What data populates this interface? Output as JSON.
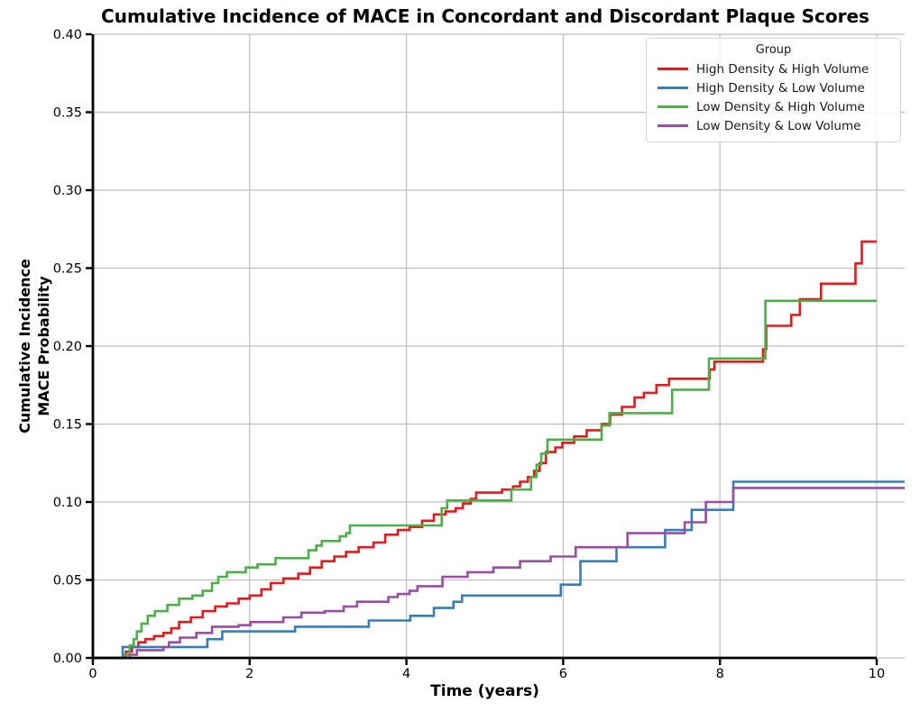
{
  "title": "Cumulative Incidence of MACE in Concordant and Discordant Plaque Scores",
  "x_axis": {
    "label": "Time (years)",
    "tick_values": [
      0,
      2,
      4,
      6,
      8,
      10
    ],
    "tick_labels": [
      "0",
      "2",
      "4",
      "6",
      "8",
      "10"
    ],
    "range": [
      0,
      10.36
    ]
  },
  "y_axis": {
    "label_line1": "Cumulative Incidence",
    "label_line2": "MACE Probability",
    "tick_values": [
      0.0,
      0.05,
      0.1,
      0.15,
      0.2,
      0.25,
      0.3,
      0.35,
      0.4
    ],
    "tick_labels": [
      "0.00",
      "0.05",
      "0.10",
      "0.15",
      "0.20",
      "0.25",
      "0.30",
      "0.35",
      "0.40"
    ],
    "range": [
      0,
      0.4
    ]
  },
  "legend": {
    "title": "Group"
  },
  "colors": {
    "grid": "#bdbdbd",
    "spine": "#000000",
    "red": "#e41a1c",
    "blue": "#377eb8",
    "green": "#4daf4a",
    "purple": "#984ea3"
  },
  "chart_data": {
    "type": "line",
    "subtype": "step-after",
    "title": "Cumulative Incidence of MACE in Concordant and Discordant Plaque Scores",
    "xlabel": "Time (years)",
    "ylabel": "Cumulative Incidence MACE Probability",
    "xlim": [
      0,
      10.36
    ],
    "ylim": [
      0,
      0.4
    ],
    "grid": true,
    "legend_position": "upper right",
    "legend_title": "Group",
    "series": [
      {
        "name": "High Density & High Volume",
        "color": "#e41a1c",
        "points": [
          [
            0,
            0
          ],
          [
            0.42,
            0.004
          ],
          [
            0.5,
            0.007
          ],
          [
            0.58,
            0.01
          ],
          [
            0.67,
            0.012
          ],
          [
            0.78,
            0.014
          ],
          [
            0.9,
            0.016
          ],
          [
            1.0,
            0.019
          ],
          [
            1.1,
            0.023
          ],
          [
            1.25,
            0.026
          ],
          [
            1.4,
            0.03
          ],
          [
            1.56,
            0.033
          ],
          [
            1.71,
            0.035
          ],
          [
            1.86,
            0.038
          ],
          [
            2.0,
            0.04
          ],
          [
            2.15,
            0.044
          ],
          [
            2.27,
            0.048
          ],
          [
            2.43,
            0.051
          ],
          [
            2.62,
            0.054
          ],
          [
            2.77,
            0.058
          ],
          [
            2.92,
            0.062
          ],
          [
            3.08,
            0.065
          ],
          [
            3.23,
            0.068
          ],
          [
            3.39,
            0.071
          ],
          [
            3.58,
            0.074
          ],
          [
            3.73,
            0.079
          ],
          [
            3.89,
            0.082
          ],
          [
            4.04,
            0.084
          ],
          [
            4.2,
            0.088
          ],
          [
            4.35,
            0.092
          ],
          [
            4.5,
            0.094
          ],
          [
            4.63,
            0.096
          ],
          [
            4.72,
            0.099
          ],
          [
            4.82,
            0.102
          ],
          [
            4.89,
            0.106
          ],
          [
            5.22,
            0.108
          ],
          [
            5.36,
            0.11
          ],
          [
            5.45,
            0.113
          ],
          [
            5.55,
            0.116
          ],
          [
            5.63,
            0.12
          ],
          [
            5.7,
            0.125
          ],
          [
            5.78,
            0.132
          ],
          [
            5.9,
            0.135
          ],
          [
            5.99,
            0.138
          ],
          [
            6.14,
            0.142
          ],
          [
            6.3,
            0.146
          ],
          [
            6.49,
            0.15
          ],
          [
            6.6,
            0.156
          ],
          [
            6.75,
            0.161
          ],
          [
            6.91,
            0.167
          ],
          [
            7.03,
            0.17
          ],
          [
            7.19,
            0.175
          ],
          [
            7.35,
            0.179
          ],
          [
            7.87,
            0.185
          ],
          [
            7.93,
            0.19
          ],
          [
            8.55,
            0.198
          ],
          [
            8.59,
            0.213
          ],
          [
            8.91,
            0.22
          ],
          [
            9.02,
            0.23
          ],
          [
            9.29,
            0.24
          ],
          [
            9.73,
            0.253
          ],
          [
            9.81,
            0.267
          ],
          [
            10,
            0.267
          ]
        ]
      },
      {
        "name": "High Density & Low Volume",
        "color": "#377eb8",
        "points": [
          [
            0,
            0
          ],
          [
            0.38,
            0.007
          ],
          [
            1.46,
            0.012
          ],
          [
            1.65,
            0.017
          ],
          [
            2.58,
            0.02
          ],
          [
            3.52,
            0.024
          ],
          [
            4.05,
            0.027
          ],
          [
            4.35,
            0.032
          ],
          [
            4.6,
            0.036
          ],
          [
            4.71,
            0.04
          ],
          [
            5.97,
            0.047
          ],
          [
            6.22,
            0.062
          ],
          [
            6.68,
            0.071
          ],
          [
            7.3,
            0.082
          ],
          [
            7.64,
            0.095
          ],
          [
            8.17,
            0.113
          ],
          [
            10.36,
            0.113
          ]
        ]
      },
      {
        "name": "Low Density & High Volume",
        "color": "#4daf4a",
        "points": [
          [
            0,
            0
          ],
          [
            0.4,
            0.002
          ],
          [
            0.47,
            0.008
          ],
          [
            0.52,
            0.012
          ],
          [
            0.56,
            0.017
          ],
          [
            0.62,
            0.022
          ],
          [
            0.7,
            0.027
          ],
          [
            0.79,
            0.03
          ],
          [
            0.95,
            0.034
          ],
          [
            1.1,
            0.038
          ],
          [
            1.27,
            0.04
          ],
          [
            1.4,
            0.043
          ],
          [
            1.52,
            0.048
          ],
          [
            1.6,
            0.052
          ],
          [
            1.71,
            0.055
          ],
          [
            1.95,
            0.058
          ],
          [
            2.1,
            0.06
          ],
          [
            2.33,
            0.064
          ],
          [
            2.75,
            0.069
          ],
          [
            2.85,
            0.072
          ],
          [
            2.92,
            0.075
          ],
          [
            3.15,
            0.078
          ],
          [
            3.23,
            0.08
          ],
          [
            3.28,
            0.085
          ],
          [
            4.45,
            0.096
          ],
          [
            4.52,
            0.101
          ],
          [
            5.34,
            0.108
          ],
          [
            5.59,
            0.116
          ],
          [
            5.66,
            0.124
          ],
          [
            5.72,
            0.131
          ],
          [
            5.8,
            0.14
          ],
          [
            6.49,
            0.149
          ],
          [
            6.59,
            0.157
          ],
          [
            7.39,
            0.172
          ],
          [
            7.86,
            0.192
          ],
          [
            8.58,
            0.229
          ],
          [
            10,
            0.229
          ]
        ]
      },
      {
        "name": "Low Density & Low Volume",
        "color": "#984ea3",
        "points": [
          [
            0,
            0
          ],
          [
            0.47,
            0.002
          ],
          [
            0.56,
            0.005
          ],
          [
            0.9,
            0.007
          ],
          [
            0.97,
            0.01
          ],
          [
            1.11,
            0.013
          ],
          [
            1.32,
            0.016
          ],
          [
            1.52,
            0.02
          ],
          [
            1.86,
            0.021
          ],
          [
            2.01,
            0.023
          ],
          [
            2.43,
            0.026
          ],
          [
            2.66,
            0.029
          ],
          [
            2.96,
            0.03
          ],
          [
            3.2,
            0.033
          ],
          [
            3.37,
            0.036
          ],
          [
            3.77,
            0.039
          ],
          [
            3.89,
            0.041
          ],
          [
            4.04,
            0.043
          ],
          [
            4.14,
            0.046
          ],
          [
            4.46,
            0.052
          ],
          [
            4.78,
            0.055
          ],
          [
            5.11,
            0.058
          ],
          [
            5.45,
            0.062
          ],
          [
            5.84,
            0.065
          ],
          [
            6.16,
            0.071
          ],
          [
            6.82,
            0.08
          ],
          [
            7.55,
            0.087
          ],
          [
            7.82,
            0.1
          ],
          [
            8.17,
            0.109
          ],
          [
            10.36,
            0.109
          ]
        ]
      }
    ]
  }
}
